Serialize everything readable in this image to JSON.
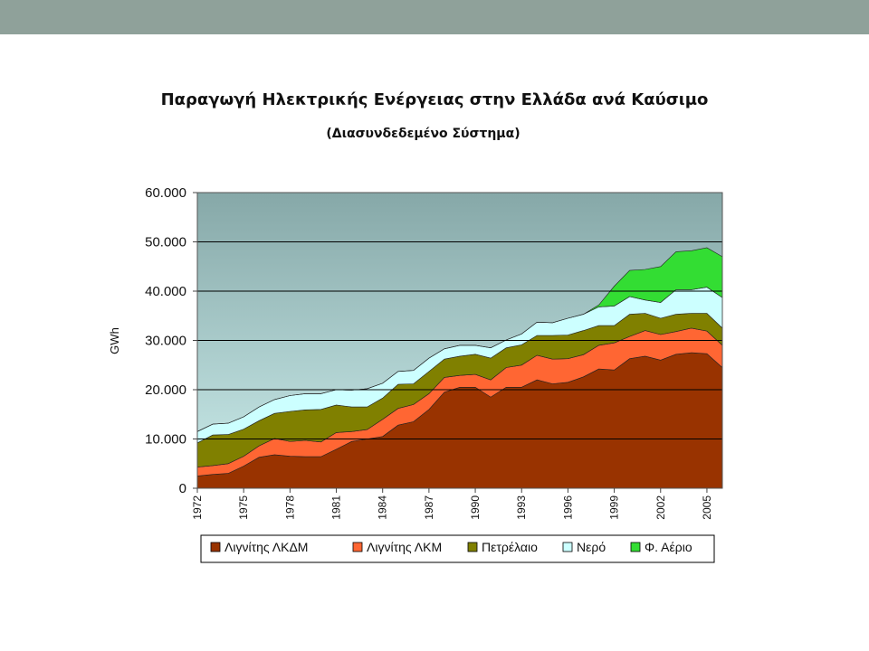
{
  "colors": {
    "top_bar": "#8fa19a",
    "plot_gradient_top": "#86a8a8",
    "plot_gradient_bottom": "#cbeceb",
    "series": [
      "#993300",
      "#ff6633",
      "#808000",
      "#ccffff",
      "#33dd33"
    ]
  },
  "chart_data": {
    "type": "area",
    "stacked": true,
    "title": "Παραγωγή Ηλεκτρικής Ενέργειας στην Ελλάδα ανά Καύσιμο",
    "subtitle": "(Διασυνδεδεμένο Σύστημα)",
    "xlabel": "",
    "ylabel": "GWh",
    "ylim": [
      0,
      60000
    ],
    "yticks": [
      0,
      10000,
      20000,
      30000,
      40000,
      50000,
      60000
    ],
    "ytick_labels": [
      "0",
      "10.000",
      "20.000",
      "30.000",
      "40.000",
      "50.000",
      "60.000"
    ],
    "xticks": [
      1972,
      1975,
      1978,
      1981,
      1984,
      1987,
      1990,
      1993,
      1996,
      1999,
      2002,
      2005
    ],
    "xtick_labels": [
      "1972",
      "1975",
      "1978",
      "1981",
      "1984",
      "1987",
      "1990",
      "1993",
      "1996",
      "1999",
      "2002",
      "2005"
    ],
    "grid": true,
    "legend_position": "bottom",
    "x": [
      1972,
      1973,
      1974,
      1975,
      1976,
      1977,
      1978,
      1979,
      1980,
      1981,
      1982,
      1983,
      1984,
      1985,
      1986,
      1987,
      1988,
      1989,
      1990,
      1991,
      1992,
      1993,
      1994,
      1995,
      1996,
      1997,
      1998,
      1999,
      2000,
      2001,
      2002,
      2003,
      2004,
      2005,
      2006
    ],
    "series": [
      {
        "name": "Λιγνίτης ΛΚΔΜ",
        "values": [
          2500,
          2800,
          3000,
          4500,
          6300,
          6800,
          6500,
          6400,
          6400,
          7900,
          9500,
          10000,
          10500,
          12800,
          13500,
          16000,
          19500,
          20500,
          20500,
          18500,
          20500,
          20500,
          22000,
          21200,
          21500,
          22600,
          24200,
          24000,
          26300,
          26800,
          26000,
          27200,
          27500,
          27300,
          24500
        ]
      },
      {
        "name": "Λιγνίτης ΛΚΜ",
        "values": [
          1800,
          1800,
          2000,
          2000,
          2300,
          3300,
          3000,
          3300,
          3000,
          3400,
          2000,
          1900,
          3500,
          3400,
          3500,
          3200,
          3000,
          2400,
          2600,
          3500,
          4000,
          4500,
          5000,
          5000,
          4800,
          4500,
          4800,
          5500,
          4500,
          5200,
          5200,
          4600,
          5000,
          4600,
          4500
        ]
      },
      {
        "name": "Πετρέλαιο",
        "values": [
          4900,
          6200,
          5900,
          5500,
          5100,
          5100,
          6100,
          6200,
          6600,
          5600,
          5000,
          4600,
          4300,
          4900,
          4200,
          4500,
          3700,
          3900,
          4100,
          4400,
          4000,
          4100,
          4000,
          4800,
          4800,
          4900,
          4000,
          3500,
          4500,
          3500,
          3300,
          3500,
          3000,
          3600,
          3500
        ]
      },
      {
        "name": "Νερό",
        "values": [
          2300,
          2200,
          2300,
          2500,
          2800,
          2800,
          3200,
          3300,
          3200,
          3100,
          3400,
          3700,
          3000,
          2600,
          2700,
          2700,
          2100,
          2200,
          1800,
          2100,
          1600,
          2200,
          2700,
          2600,
          3400,
          3300,
          3800,
          4000,
          3600,
          2700,
          3200,
          5000,
          4800,
          5300,
          6200
        ]
      },
      {
        "name": "Φ. Αέριο",
        "values": [
          0,
          0,
          0,
          0,
          0,
          0,
          0,
          0,
          0,
          0,
          0,
          0,
          0,
          0,
          0,
          0,
          0,
          0,
          0,
          0,
          0,
          0,
          0,
          0,
          0,
          0,
          400,
          4000,
          5300,
          6200,
          7300,
          7700,
          7900,
          8000,
          8300
        ]
      }
    ]
  }
}
